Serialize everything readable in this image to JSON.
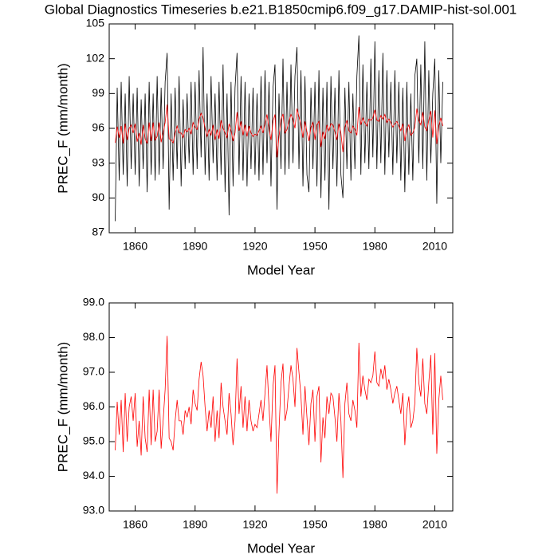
{
  "chart_data": [
    {
      "type": "line",
      "title": "Global Diagnostics Timeseries b.e21.B1850cmip6.f09_g17.DAMIP-hist-sol.001",
      "xlabel": "Model Year",
      "ylabel": "PREC_F (mm/month)",
      "x": [
        1850,
        1851,
        1852,
        1853,
        1854,
        1855,
        1856,
        1857,
        1858,
        1859,
        1860,
        1861,
        1862,
        1863,
        1864,
        1865,
        1866,
        1867,
        1868,
        1869,
        1870,
        1871,
        1872,
        1873,
        1874,
        1875,
        1876,
        1877,
        1878,
        1879,
        1880,
        1881,
        1882,
        1883,
        1884,
        1885,
        1886,
        1887,
        1888,
        1889,
        1890,
        1891,
        1892,
        1893,
        1894,
        1895,
        1896,
        1897,
        1898,
        1899,
        1900,
        1901,
        1902,
        1903,
        1904,
        1905,
        1906,
        1907,
        1908,
        1909,
        1910,
        1911,
        1912,
        1913,
        1914,
        1915,
        1916,
        1917,
        1918,
        1919,
        1920,
        1921,
        1922,
        1923,
        1924,
        1925,
        1926,
        1927,
        1928,
        1929,
        1930,
        1931,
        1932,
        1933,
        1934,
        1935,
        1936,
        1937,
        1938,
        1939,
        1940,
        1941,
        1942,
        1943,
        1944,
        1945,
        1946,
        1947,
        1948,
        1949,
        1950,
        1951,
        1952,
        1953,
        1954,
        1955,
        1956,
        1957,
        1958,
        1959,
        1960,
        1961,
        1962,
        1963,
        1964,
        1965,
        1966,
        1967,
        1968,
        1969,
        1970,
        1971,
        1972,
        1973,
        1974,
        1975,
        1976,
        1977,
        1978,
        1979,
        1980,
        1981,
        1982,
        1983,
        1984,
        1985,
        1986,
        1987,
        1988,
        1989,
        1990,
        1991,
        1992,
        1993,
        1994,
        1995,
        1996,
        1997,
        1998,
        1999,
        2000,
        2001,
        2002,
        2003,
        2004,
        2005,
        2006,
        2007,
        2008,
        2009,
        2010,
        2011,
        2012,
        2013,
        2014
      ],
      "series": [
        {
          "color": "#000000",
          "values": [
            88.0,
            99.5,
            91.5,
            100.0,
            92.0,
            99.0,
            91.0,
            100.5,
            92.5,
            99.0,
            92.0,
            99.5,
            91.0,
            98.5,
            92.5,
            99.0,
            90.5,
            100.0,
            92.0,
            99.0,
            91.5,
            100.5,
            92.0,
            99.5,
            92.5,
            100.0,
            102.5,
            89.0,
            99.0,
            91.5,
            99.5,
            92.5,
            100.5,
            91.0,
            98.5,
            92.5,
            99.0,
            93.0,
            100.0,
            92.0,
            100.0,
            92.5,
            101.0,
            93.5,
            103.0,
            92.0,
            99.0,
            91.5,
            100.5,
            93.0,
            99.0,
            91.5,
            100.0,
            92.0,
            101.5,
            90.5,
            99.0,
            88.5,
            100.0,
            91.0,
            99.5,
            102.5,
            92.0,
            100.5,
            91.5,
            100.0,
            91.0,
            99.0,
            92.5,
            99.5,
            92.0,
            99.0,
            91.5,
            100.5,
            92.0,
            101.0,
            93.0,
            100.0,
            91.0,
            99.5,
            101.5,
            89.0,
            99.0,
            92.5,
            102.0,
            92.0,
            100.0,
            92.5,
            101.5,
            93.0,
            100.5,
            103.0,
            92.5,
            101.0,
            91.0,
            100.5,
            92.0,
            90.5,
            99.5,
            92.5,
            100.0,
            91.0,
            101.0,
            90.0,
            99.5,
            91.5,
            100.0,
            89.0,
            100.5,
            92.5,
            99.5,
            91.0,
            101.0,
            92.0,
            90.0,
            99.5,
            92.5,
            100.0,
            91.5,
            99.0,
            92.5,
            100.5,
            104.0,
            92.0,
            101.5,
            93.0,
            100.0,
            92.5,
            102.0,
            93.5,
            103.5,
            92.5,
            101.0,
            93.0,
            102.5,
            92.0,
            101.0,
            93.5,
            100.0,
            92.0,
            101.0,
            93.0,
            100.0,
            91.5,
            99.5,
            90.5,
            100.0,
            92.0,
            99.0,
            91.5,
            100.5,
            102.0,
            93.0,
            101.5,
            92.5,
            103.5,
            91.5,
            101.0,
            93.0,
            99.0,
            102.0,
            89.5,
            101.0,
            93.0,
            100.0
          ]
        },
        {
          "color": "#ff0000",
          "values": [
            94.75,
            96.15,
            95.2,
            96.2,
            94.7,
            96.4,
            95.0,
            96.0,
            96.3,
            95.6,
            96.4,
            94.85,
            95.6,
            94.6,
            96.3,
            95.1,
            94.7,
            96.5,
            94.9,
            96.5,
            95.0,
            95.3,
            96.5,
            94.8,
            95.6,
            96.5,
            98.05,
            95.1,
            95.0,
            94.75,
            95.6,
            96.2,
            95.6,
            95.6,
            95.2,
            95.9,
            95.7,
            96.0,
            95.5,
            96.5,
            96.1,
            95.9,
            96.8,
            97.3,
            96.9,
            96.0,
            95.3,
            95.9,
            95.4,
            96.3,
            95.0,
            95.9,
            95.1,
            96.7,
            96.0,
            95.6,
            95.2,
            96.4,
            95.8,
            94.9,
            95.6,
            97.4,
            95.8,
            96.6,
            95.4,
            96.3,
            95.3,
            96.2,
            95.6,
            95.3,
            95.5,
            95.4,
            95.8,
            96.2,
            95.6,
            96.4,
            97.2,
            96.0,
            95.0,
            96.6,
            97.2,
            93.5,
            95.3,
            96.7,
            97.25,
            95.6,
            95.9,
            96.6,
            97.2,
            96.8,
            96.0,
            97.7,
            97.0,
            96.3,
            95.2,
            96.6,
            95.7,
            94.9,
            96.1,
            96.5,
            95.0,
            96.3,
            96.6,
            94.4,
            95.7,
            95.1,
            96.3,
            95.8,
            96.4,
            96.3,
            95.7,
            95.0,
            96.4,
            95.6,
            93.95,
            96.1,
            96.7,
            95.8,
            95.6,
            96.2,
            95.9,
            95.4,
            97.85,
            96.3,
            96.9,
            96.5,
            96.2,
            96.8,
            96.7,
            96.9,
            97.6,
            96.7,
            96.6,
            97.1,
            96.8,
            97.2,
            96.5,
            96.8,
            96.5,
            96.1,
            96.4,
            96.6,
            96.2,
            95.8,
            96.4,
            94.9,
            95.9,
            96.3,
            95.4,
            95.6,
            96.1,
            97.7,
            96.7,
            96.3,
            97.4,
            96.1,
            95.8,
            96.7,
            97.5,
            95.2,
            97.55,
            94.65,
            96.2,
            96.9,
            96.2
          ]
        }
      ],
      "xlim": [
        1847,
        2019
      ],
      "xticks": [
        1860,
        1890,
        1920,
        1950,
        1980,
        2010
      ],
      "ylim": [
        87,
        105
      ],
      "yticks": [
        87,
        90,
        93,
        96,
        99,
        102,
        105
      ]
    },
    {
      "type": "line",
      "xlabel": "Model Year",
      "ylabel": "PREC_F (mm/month)",
      "x": [
        1850,
        1851,
        1852,
        1853,
        1854,
        1855,
        1856,
        1857,
        1858,
        1859,
        1860,
        1861,
        1862,
        1863,
        1864,
        1865,
        1866,
        1867,
        1868,
        1869,
        1870,
        1871,
        1872,
        1873,
        1874,
        1875,
        1876,
        1877,
        1878,
        1879,
        1880,
        1881,
        1882,
        1883,
        1884,
        1885,
        1886,
        1887,
        1888,
        1889,
        1890,
        1891,
        1892,
        1893,
        1894,
        1895,
        1896,
        1897,
        1898,
        1899,
        1900,
        1901,
        1902,
        1903,
        1904,
        1905,
        1906,
        1907,
        1908,
        1909,
        1910,
        1911,
        1912,
        1913,
        1914,
        1915,
        1916,
        1917,
        1918,
        1919,
        1920,
        1921,
        1922,
        1923,
        1924,
        1925,
        1926,
        1927,
        1928,
        1929,
        1930,
        1931,
        1932,
        1933,
        1934,
        1935,
        1936,
        1937,
        1938,
        1939,
        1940,
        1941,
        1942,
        1943,
        1944,
        1945,
        1946,
        1947,
        1948,
        1949,
        1950,
        1951,
        1952,
        1953,
        1954,
        1955,
        1956,
        1957,
        1958,
        1959,
        1960,
        1961,
        1962,
        1963,
        1964,
        1965,
        1966,
        1967,
        1968,
        1969,
        1970,
        1971,
        1972,
        1973,
        1974,
        1975,
        1976,
        1977,
        1978,
        1979,
        1980,
        1981,
        1982,
        1983,
        1984,
        1985,
        1986,
        1987,
        1988,
        1989,
        1990,
        1991,
        1992,
        1993,
        1994,
        1995,
        1996,
        1997,
        1998,
        1999,
        2000,
        2001,
        2002,
        2003,
        2004,
        2005,
        2006,
        2007,
        2008,
        2009,
        2010,
        2011,
        2012,
        2013,
        2014
      ],
      "series": [
        {
          "color": "#ff0000",
          "values": [
            94.75,
            96.15,
            95.2,
            96.2,
            94.7,
            96.4,
            95.0,
            96.0,
            96.3,
            95.6,
            96.4,
            94.85,
            95.6,
            94.6,
            96.3,
            95.1,
            94.7,
            96.5,
            94.9,
            96.5,
            95.0,
            95.3,
            96.5,
            94.8,
            95.6,
            96.5,
            98.05,
            95.1,
            95.0,
            94.75,
            95.6,
            96.2,
            95.6,
            95.6,
            95.2,
            95.9,
            95.7,
            96.0,
            95.5,
            96.5,
            96.1,
            95.9,
            96.8,
            97.3,
            96.9,
            96.0,
            95.3,
            95.9,
            95.4,
            96.3,
            95.0,
            95.9,
            95.1,
            96.7,
            96.0,
            95.6,
            95.2,
            96.4,
            95.8,
            94.9,
            95.6,
            97.4,
            95.8,
            96.6,
            95.4,
            96.3,
            95.3,
            96.2,
            95.6,
            95.3,
            95.5,
            95.4,
            95.8,
            96.2,
            95.6,
            96.4,
            97.2,
            96.0,
            95.0,
            96.6,
            97.2,
            93.5,
            95.3,
            96.7,
            97.25,
            95.6,
            95.9,
            96.6,
            97.2,
            96.8,
            96.0,
            97.7,
            97.0,
            96.3,
            95.2,
            96.6,
            95.7,
            94.9,
            96.1,
            96.5,
            95.0,
            96.3,
            96.6,
            94.4,
            95.7,
            95.1,
            96.3,
            95.8,
            96.4,
            96.3,
            95.7,
            95.0,
            96.4,
            95.6,
            93.95,
            96.1,
            96.7,
            95.8,
            95.6,
            96.2,
            95.9,
            95.4,
            97.85,
            96.3,
            96.9,
            96.5,
            96.2,
            96.8,
            96.7,
            96.9,
            97.6,
            96.7,
            96.6,
            97.1,
            96.8,
            97.2,
            96.5,
            96.8,
            96.5,
            96.1,
            96.4,
            96.6,
            96.2,
            95.8,
            96.4,
            94.9,
            95.9,
            96.3,
            95.4,
            95.6,
            96.1,
            97.7,
            96.7,
            96.3,
            97.4,
            96.1,
            95.8,
            96.7,
            97.5,
            95.2,
            97.55,
            94.65,
            96.2,
            96.9,
            96.2
          ]
        }
      ],
      "xlim": [
        1847,
        2019
      ],
      "xticks": [
        1860,
        1890,
        1920,
        1950,
        1980,
        2010
      ],
      "ylim": [
        93,
        99
      ],
      "yticks": [
        {
          "value": 93,
          "label": "93.0"
        },
        {
          "value": 94,
          "label": "94.0"
        },
        {
          "value": 95,
          "label": "95.0"
        },
        {
          "value": 96,
          "label": "96.0"
        },
        {
          "value": 97,
          "label": "97.0"
        },
        {
          "value": 98,
          "label": "98.0"
        },
        {
          "value": 99,
          "label": "99.0"
        }
      ]
    }
  ]
}
